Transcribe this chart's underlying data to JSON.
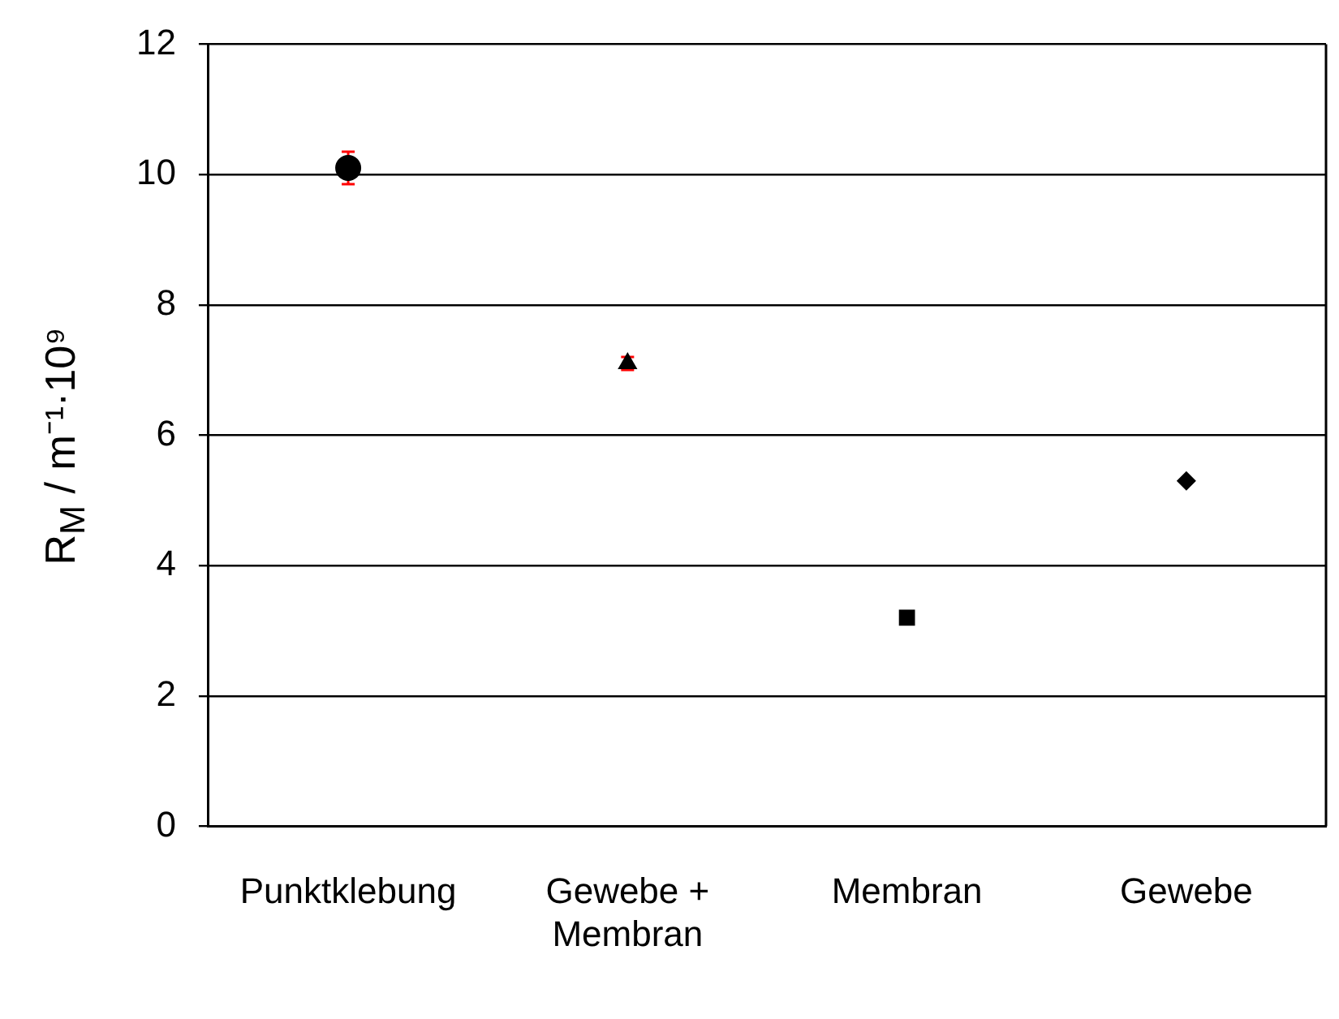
{
  "chart_data": {
    "type": "scatter",
    "ylabel": "R$_{M}$ / m⁻¹·10⁹",
    "categories": [
      "Punktklebung",
      "Gewebe + Membran",
      "Membran",
      "Gewebe"
    ],
    "series": [
      {
        "color": "#000000",
        "marker": "circle",
        "values": [
          10.1,
          null,
          null,
          null
        ],
        "errors": [
          0.25,
          null,
          null,
          null
        ]
      },
      {
        "color": "#000000",
        "marker": "triangle",
        "values": [
          null,
          7.1,
          null,
          null
        ],
        "errors": [
          null,
          0.1,
          null,
          null
        ]
      },
      {
        "color": "#000000",
        "marker": "square",
        "values": [
          null,
          null,
          3.2,
          null
        ],
        "errors": [
          null,
          null,
          null,
          null
        ]
      },
      {
        "color": "#000000",
        "marker": "diamond",
        "values": [
          null,
          null,
          null,
          5.3
        ],
        "errors": [
          null,
          null,
          null,
          null
        ]
      }
    ],
    "ylim": [
      0,
      12
    ],
    "yticks": [
      0,
      2,
      4,
      6,
      8,
      10,
      12
    ],
    "grid": "y",
    "legend": false
  }
}
